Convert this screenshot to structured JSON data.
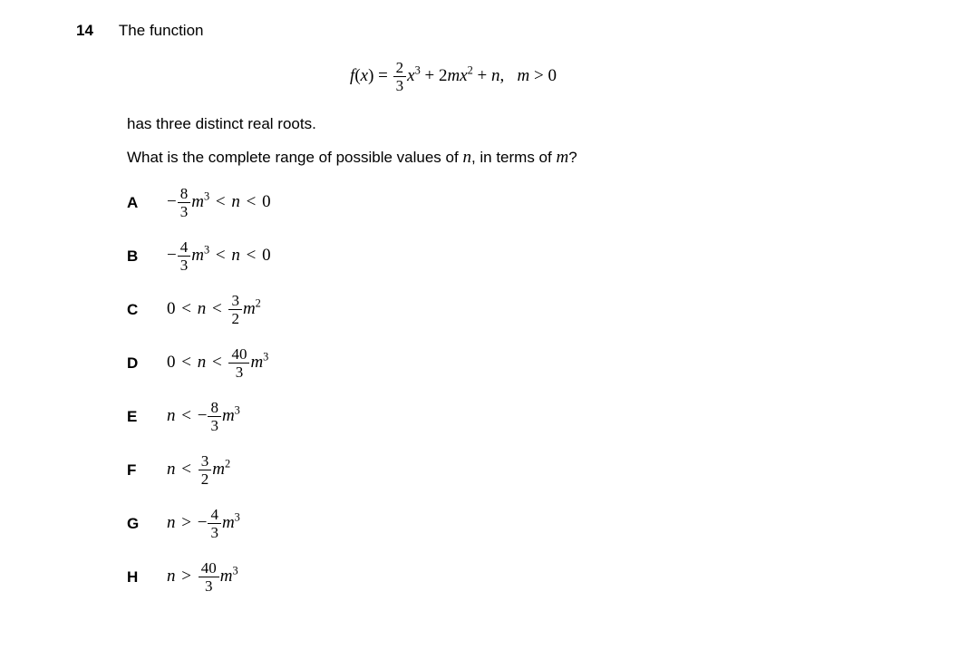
{
  "question": {
    "number": "14",
    "intro": "The function",
    "line2": "has three distinct real roots.",
    "line3_prefix": "What is the complete range of possible values of ",
    "line3_var": "n",
    "line3_mid": ", in terms of ",
    "line3_var2": "m",
    "line3_suffix": "?"
  },
  "equation": {
    "f": "f",
    "x": "x",
    "frac_num": "2",
    "frac_den": "3",
    "cubed": "3",
    "coef2": "2",
    "m": "m",
    "sq": "2",
    "n": "n",
    "cond_m": "m",
    "cond_gt": ">",
    "cond_zero": "0"
  },
  "options": {
    "A": {
      "label": "A",
      "neg": "−",
      "fnum": "8",
      "fden": "3",
      "m": "m",
      "pow": "3",
      "rel1": "<",
      "n": "n",
      "rel2": "<",
      "rhs": "0"
    },
    "B": {
      "label": "B",
      "neg": "−",
      "fnum": "4",
      "fden": "3",
      "m": "m",
      "pow": "3",
      "rel1": "<",
      "n": "n",
      "rel2": "<",
      "rhs": "0"
    },
    "C": {
      "label": "C",
      "lhs": "0",
      "rel1": "<",
      "n": "n",
      "rel2": "<",
      "fnum": "3",
      "fden": "2",
      "m": "m",
      "pow": "2"
    },
    "D": {
      "label": "D",
      "lhs": "0",
      "rel1": "<",
      "n": "n",
      "rel2": "<",
      "fnum": "40",
      "fden": "3",
      "m": "m",
      "pow": "3"
    },
    "E": {
      "label": "E",
      "n": "n",
      "rel": "<",
      "neg": "−",
      "fnum": "8",
      "fden": "3",
      "m": "m",
      "pow": "3"
    },
    "F": {
      "label": "F",
      "n": "n",
      "rel": "<",
      "fnum": "3",
      "fden": "2",
      "m": "m",
      "pow": "2"
    },
    "G": {
      "label": "G",
      "n": "n",
      "rel": ">",
      "neg": "−",
      "fnum": "4",
      "fden": "3",
      "m": "m",
      "pow": "3"
    },
    "H": {
      "label": "H",
      "n": "n",
      "rel": ">",
      "fnum": "40",
      "fden": "3",
      "m": "m",
      "pow": "3"
    }
  }
}
